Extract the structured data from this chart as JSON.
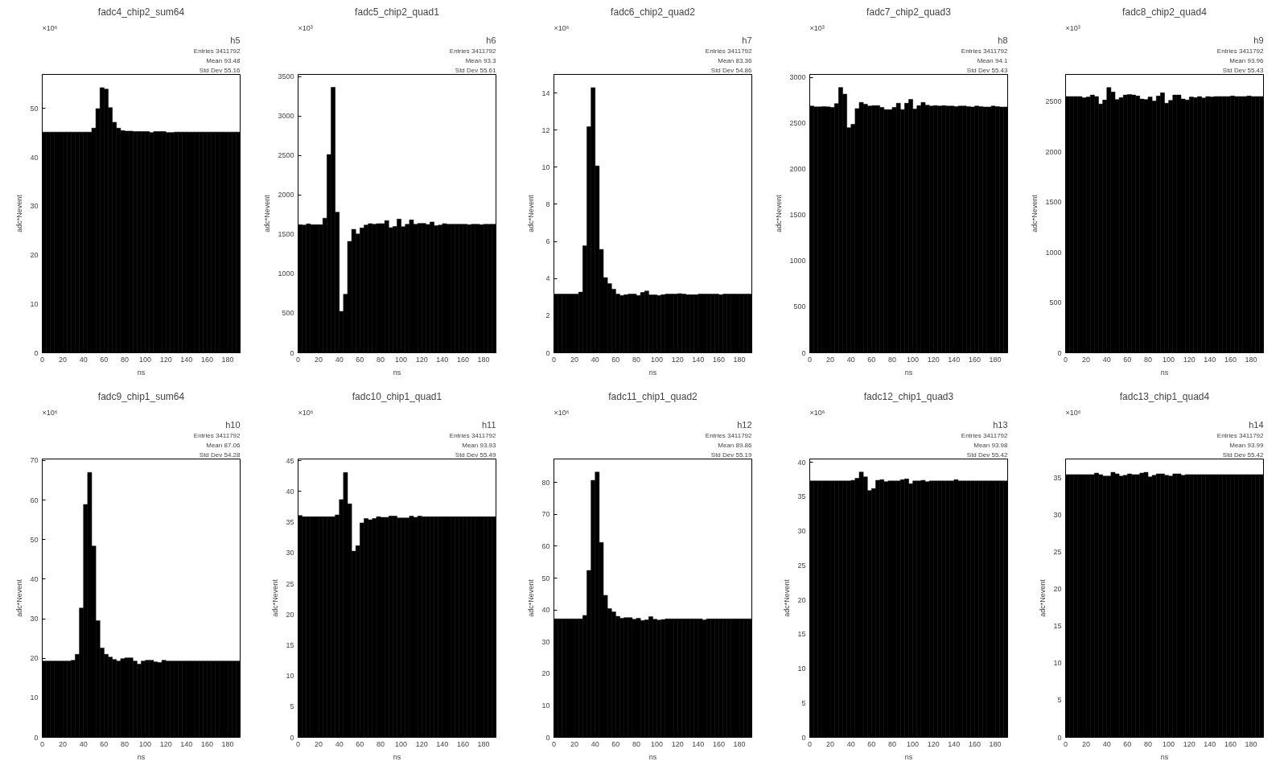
{
  "chart_data": [
    {
      "type": "histogram",
      "title": "fadc4_chip2_sum64",
      "xlabel": "ns",
      "ylabel": "adc*Nevent",
      "color": "#000000",
      "bins": [
        0,
        4,
        8,
        12,
        16,
        20,
        24,
        28,
        32,
        36,
        40,
        44,
        48,
        52,
        56,
        60,
        64,
        68,
        72,
        76,
        80,
        84,
        88,
        92,
        96,
        100,
        104,
        108,
        112,
        116,
        120,
        124,
        128,
        132,
        136,
        140,
        144,
        148,
        152,
        156,
        160,
        164,
        168,
        172,
        176,
        180,
        184,
        188,
        192
      ],
      "values": [
        45.2,
        45.2,
        45.2,
        45.2,
        45.2,
        45.2,
        45.2,
        45.2,
        45.2,
        45.2,
        45.2,
        45.2,
        46.0,
        50.0,
        54.3,
        54.0,
        50.2,
        47.2,
        46.0,
        45.5,
        45.4,
        45.4,
        45.3,
        45.3,
        45.3,
        45.3,
        45.1,
        45.3,
        45.3,
        45.3,
        45.1,
        45.1,
        45.2,
        45.2,
        45.2,
        45.2,
        45.2,
        45.2,
        45.2,
        45.2,
        45.2,
        45.2,
        45.2,
        45.2,
        45.2,
        45.2,
        45.2,
        45.2
      ],
      "xlim": [
        0,
        192
      ],
      "ylim": [
        0,
        57
      ],
      "xticks": [
        0,
        20,
        40,
        60,
        80,
        100,
        120,
        140,
        160,
        180
      ],
      "yticks": [
        0,
        10,
        20,
        30,
        40,
        50
      ],
      "annotations": [
        "×10⁶",
        "h5",
        "Entries 3411792",
        "Mean 93.48",
        "Std Dev 55.16"
      ]
    },
    {
      "type": "histogram",
      "title": "fadc5_chip2_quad1",
      "xlabel": "ns",
      "ylabel": "adc*Nevent",
      "color": "#000000",
      "bins": [
        0,
        4,
        8,
        12,
        16,
        20,
        24,
        28,
        32,
        36,
        40,
        44,
        48,
        52,
        56,
        60,
        64,
        68,
        72,
        76,
        80,
        84,
        88,
        92,
        96,
        100,
        104,
        108,
        112,
        116,
        120,
        124,
        128,
        132,
        136,
        140,
        144,
        148,
        152,
        156,
        160,
        164,
        168,
        172,
        176,
        180,
        184,
        188,
        192
      ],
      "values": [
        1625,
        1620,
        1635,
        1625,
        1625,
        1625,
        1707,
        2514,
        3366,
        1783,
        525,
        743,
        1413,
        1565,
        1507,
        1583,
        1620,
        1638,
        1630,
        1638,
        1638,
        1677,
        1587,
        1601,
        1695,
        1598,
        1630,
        1685,
        1630,
        1641,
        1641,
        1627,
        1659,
        1612,
        1620,
        1638,
        1630,
        1630,
        1630,
        1630,
        1630,
        1625,
        1630,
        1630,
        1625,
        1630,
        1630,
        1630
      ],
      "xlim": [
        0,
        192
      ],
      "ylim": [
        0,
        3530
      ],
      "xticks": [
        0,
        20,
        40,
        60,
        80,
        100,
        120,
        140,
        160,
        180
      ],
      "yticks": [
        0,
        500,
        1000,
        1500,
        2000,
        2500,
        3000,
        3500
      ],
      "annotations": [
        "×10³",
        "h6",
        "Entries 3411792",
        "Mean 93.3",
        "Std Dev 55.61"
      ]
    },
    {
      "type": "histogram",
      "title": "fadc6_chip2_quad2",
      "xlabel": "ns",
      "ylabel": "adc*Nevent",
      "color": "#000000",
      "bins": [
        0,
        4,
        8,
        12,
        16,
        20,
        24,
        28,
        32,
        36,
        40,
        44,
        48,
        52,
        56,
        60,
        64,
        68,
        72,
        76,
        80,
        84,
        88,
        92,
        96,
        100,
        104,
        108,
        112,
        116,
        120,
        124,
        128,
        132,
        136,
        140,
        144,
        148,
        152,
        156,
        160,
        164,
        168,
        172,
        176,
        180,
        184,
        188,
        192
      ],
      "values": [
        3.16,
        3.16,
        3.16,
        3.16,
        3.16,
        3.16,
        3.27,
        5.77,
        12.18,
        14.29,
        10.07,
        5.57,
        4.05,
        3.73,
        3.43,
        3.16,
        3.09,
        3.13,
        3.16,
        3.16,
        3.09,
        3.25,
        3.33,
        3.12,
        3.12,
        3.09,
        3.13,
        3.16,
        3.16,
        3.16,
        3.19,
        3.16,
        3.13,
        3.13,
        3.13,
        3.16,
        3.16,
        3.16,
        3.16,
        3.16,
        3.13,
        3.16,
        3.16,
        3.16,
        3.16,
        3.16,
        3.16,
        3.16
      ],
      "xlim": [
        0,
        192
      ],
      "ylim": [
        0,
        15
      ],
      "xticks": [
        0,
        20,
        40,
        60,
        80,
        100,
        120,
        140,
        160,
        180
      ],
      "yticks": [
        0,
        2,
        4,
        6,
        8,
        10,
        12,
        14
      ],
      "annotations": [
        "×10⁶",
        "h7",
        "Entries 3411792",
        "Mean 83.36",
        "Std Dev 54.86"
      ]
    },
    {
      "type": "histogram",
      "title": "fadc7_chip2_quad3",
      "xlabel": "ns",
      "ylabel": "adc*Nevent",
      "color": "#000000",
      "bins": [
        0,
        4,
        8,
        12,
        16,
        20,
        24,
        28,
        32,
        36,
        40,
        44,
        48,
        52,
        56,
        60,
        64,
        68,
        72,
        76,
        80,
        84,
        88,
        92,
        96,
        100,
        104,
        108,
        112,
        116,
        120,
        124,
        128,
        132,
        136,
        140,
        144,
        148,
        152,
        156,
        160,
        164,
        168,
        172,
        176,
        180,
        184,
        188,
        192
      ],
      "values": [
        2690,
        2681,
        2681,
        2685,
        2681,
        2675,
        2716,
        2893,
        2820,
        2454,
        2492,
        2663,
        2730,
        2710,
        2690,
        2695,
        2695,
        2675,
        2652,
        2652,
        2675,
        2721,
        2652,
        2721,
        2762,
        2658,
        2695,
        2730,
        2700,
        2690,
        2695,
        2690,
        2695,
        2690,
        2690,
        2685,
        2690,
        2690,
        2685,
        2680,
        2690,
        2685,
        2680,
        2680,
        2690,
        2685,
        2680,
        2680
      ],
      "xlim": [
        0,
        192
      ],
      "ylim": [
        0,
        3035
      ],
      "xticks": [
        0,
        20,
        40,
        60,
        80,
        100,
        120,
        140,
        160,
        180
      ],
      "yticks": [
        0,
        500,
        1000,
        1500,
        2000,
        2500,
        3000
      ],
      "annotations": [
        "×10³",
        "h8",
        "Entries 3411792",
        "Mean 94.1",
        "Std Dev 55.43"
      ]
    },
    {
      "type": "histogram",
      "title": "fadc8_chip2_quad4",
      "xlabel": "ns",
      "ylabel": "adc*Nevent",
      "color": "#000000",
      "bins": [
        0,
        4,
        8,
        12,
        16,
        20,
        24,
        28,
        32,
        36,
        40,
        44,
        48,
        52,
        56,
        60,
        64,
        68,
        72,
        76,
        80,
        84,
        88,
        92,
        96,
        100,
        104,
        108,
        112,
        116,
        120,
        124,
        128,
        132,
        136,
        140,
        144,
        148,
        152,
        156,
        160,
        164,
        168,
        172,
        176,
        180,
        184,
        188,
        192
      ],
      "values": [
        2550,
        2550,
        2550,
        2550,
        2538,
        2545,
        2565,
        2550,
        2475,
        2515,
        2640,
        2595,
        2520,
        2540,
        2565,
        2570,
        2565,
        2555,
        2525,
        2520,
        2545,
        2505,
        2555,
        2587,
        2483,
        2512,
        2565,
        2565,
        2525,
        2515,
        2545,
        2540,
        2550,
        2535,
        2550,
        2545,
        2550,
        2550,
        2550,
        2550,
        2555,
        2550,
        2550,
        2550,
        2555,
        2550,
        2550,
        2550
      ],
      "xlim": [
        0,
        192
      ],
      "ylim": [
        0,
        2770
      ],
      "xticks": [
        0,
        20,
        40,
        60,
        80,
        100,
        120,
        140,
        160,
        180
      ],
      "yticks": [
        0,
        500,
        1000,
        1500,
        2000,
        2500
      ],
      "annotations": [
        "×10³",
        "h9",
        "Entries 3411792",
        "Mean 93.96",
        "Std Dev 55.43"
      ]
    },
    {
      "type": "histogram",
      "title": "fadc9_chip1_sum64",
      "xlabel": "ns",
      "ylabel": "adc*Nevent",
      "color": "#000000",
      "bins": [
        0,
        4,
        8,
        12,
        16,
        20,
        24,
        28,
        32,
        36,
        40,
        44,
        48,
        52,
        56,
        60,
        64,
        68,
        72,
        76,
        80,
        84,
        88,
        92,
        96,
        100,
        104,
        108,
        112,
        116,
        120,
        124,
        128,
        132,
        136,
        140,
        144,
        148,
        152,
        156,
        160,
        164,
        168,
        172,
        176,
        180,
        184,
        188,
        192
      ],
      "values": [
        19.3,
        19.3,
        19.3,
        19.3,
        19.3,
        19.3,
        19.3,
        19.5,
        21.0,
        32.7,
        58.9,
        67.0,
        48.4,
        29.5,
        22.6,
        21.0,
        20.3,
        19.7,
        19.3,
        19.9,
        20.1,
        20.1,
        19.3,
        18.5,
        19.3,
        19.5,
        19.5,
        19.1,
        18.9,
        19.5,
        19.3,
        19.3,
        19.3,
        19.3,
        19.3,
        19.3,
        19.3,
        19.3,
        19.3,
        19.3,
        19.3,
        19.3,
        19.3,
        19.3,
        19.3,
        19.3,
        19.3,
        19.3
      ],
      "xlim": [
        0,
        192
      ],
      "ylim": [
        0,
        70.4
      ],
      "xticks": [
        0,
        20,
        40,
        60,
        80,
        100,
        120,
        140,
        160,
        180
      ],
      "yticks": [
        0,
        10,
        20,
        30,
        40,
        50,
        60,
        70
      ],
      "annotations": [
        "×10⁶",
        "h10",
        "Entries 3411792",
        "Mean 87.06",
        "Std Dev 54.28"
      ]
    },
    {
      "type": "histogram",
      "title": "fadc10_chip1_quad1",
      "xlabel": "ns",
      "ylabel": "adc*Nevent",
      "color": "#000000",
      "bins": [
        0,
        4,
        8,
        12,
        16,
        20,
        24,
        28,
        32,
        36,
        40,
        44,
        48,
        52,
        56,
        60,
        64,
        68,
        72,
        76,
        80,
        84,
        88,
        92,
        96,
        100,
        104,
        108,
        112,
        116,
        120,
        124,
        128,
        132,
        136,
        140,
        144,
        148,
        152,
        156,
        160,
        164,
        168,
        172,
        176,
        180,
        184,
        188,
        192
      ],
      "values": [
        36.1,
        35.9,
        35.9,
        35.9,
        35.9,
        35.9,
        35.9,
        35.9,
        35.9,
        36.2,
        38.7,
        43.1,
        38.0,
        30.3,
        31.2,
        34.9,
        35.6,
        35.4,
        35.6,
        35.9,
        35.8,
        35.8,
        36.0,
        36.0,
        35.7,
        35.7,
        35.7,
        36.0,
        35.8,
        36.0,
        35.9,
        35.9,
        35.9,
        35.9,
        35.9,
        35.9,
        35.9,
        35.9,
        35.9,
        35.9,
        35.9,
        35.9,
        35.9,
        35.9,
        35.9,
        35.9,
        35.9,
        35.9
      ],
      "xlim": [
        0,
        192
      ],
      "ylim": [
        0,
        45.3
      ],
      "xticks": [
        0,
        20,
        40,
        60,
        80,
        100,
        120,
        140,
        160,
        180
      ],
      "yticks": [
        0,
        5,
        10,
        15,
        20,
        25,
        30,
        35,
        40,
        45
      ],
      "annotations": [
        "×10⁶",
        "h11",
        "Entries 3411792",
        "Mean 93.93",
        "Std Dev 55.49"
      ]
    },
    {
      "type": "histogram",
      "title": "fadc11_chip1_quad2",
      "xlabel": "ns",
      "ylabel": "adc*Nevent",
      "color": "#000000",
      "bins": [
        0,
        4,
        8,
        12,
        16,
        20,
        24,
        28,
        32,
        36,
        40,
        44,
        48,
        52,
        56,
        60,
        64,
        68,
        72,
        76,
        80,
        84,
        88,
        92,
        96,
        100,
        104,
        108,
        112,
        116,
        120,
        124,
        128,
        132,
        136,
        140,
        144,
        148,
        152,
        156,
        160,
        164,
        168,
        172,
        176,
        180,
        184,
        188,
        192
      ],
      "values": [
        37.2,
        37.2,
        37.2,
        37.2,
        37.2,
        37.2,
        37.2,
        38.3,
        52.4,
        80.7,
        83.3,
        61.2,
        44.6,
        40.4,
        39.4,
        38.0,
        37.4,
        37.6,
        37.6,
        37.1,
        37.4,
        36.7,
        36.9,
        37.9,
        37.1,
        36.8,
        37.0,
        37.2,
        37.2,
        37.2,
        37.2,
        37.2,
        37.2,
        37.2,
        37.2,
        37.2,
        36.9,
        37.2,
        37.2,
        37.2,
        37.2,
        37.2,
        37.2,
        37.2,
        37.2,
        37.2,
        37.2,
        37.2
      ],
      "xlim": [
        0,
        192
      ],
      "ylim": [
        0,
        87.4
      ],
      "xticks": [
        0,
        20,
        40,
        60,
        80,
        100,
        120,
        140,
        160,
        180
      ],
      "yticks": [
        0,
        10,
        20,
        30,
        40,
        50,
        60,
        70,
        80
      ],
      "annotations": [
        "×10⁶",
        "h12",
        "Entries 3411792",
        "Mean 89.86",
        "Std Dev 55.19"
      ]
    },
    {
      "type": "histogram",
      "title": "fadc12_chip1_quad3",
      "xlabel": "ns",
      "ylabel": "adc*Nevent",
      "color": "#000000",
      "bins": [
        0,
        4,
        8,
        12,
        16,
        20,
        24,
        28,
        32,
        36,
        40,
        44,
        48,
        52,
        56,
        60,
        64,
        68,
        72,
        76,
        80,
        84,
        88,
        92,
        96,
        100,
        104,
        108,
        112,
        116,
        120,
        124,
        128,
        132,
        136,
        140,
        144,
        148,
        152,
        156,
        160,
        164,
        168,
        172,
        176,
        180,
        184,
        188,
        192
      ],
      "values": [
        37.3,
        37.3,
        37.3,
        37.3,
        37.3,
        37.3,
        37.3,
        37.3,
        37.3,
        37.3,
        37.4,
        37.7,
        38.6,
        37.9,
        35.9,
        36.2,
        37.4,
        37.5,
        37.2,
        37.3,
        37.3,
        37.3,
        37.5,
        37.6,
        36.9,
        37.3,
        37.3,
        37.4,
        37.2,
        37.3,
        37.3,
        37.3,
        37.3,
        37.3,
        37.3,
        37.5,
        37.3,
        37.3,
        37.3,
        37.3,
        37.3,
        37.3,
        37.3,
        37.3,
        37.3,
        37.3,
        37.3,
        37.3
      ],
      "xlim": [
        0,
        192
      ],
      "ylim": [
        0,
        40.5
      ],
      "xticks": [
        0,
        20,
        40,
        60,
        80,
        100,
        120,
        140,
        160,
        180
      ],
      "yticks": [
        0,
        5,
        10,
        15,
        20,
        25,
        30,
        35,
        40
      ],
      "annotations": [
        "×10⁶",
        "h13",
        "Entries 3411792",
        "Mean 93.98",
        "Std Dev 55.42"
      ]
    },
    {
      "type": "histogram",
      "title": "fadc13_chip1_quad4",
      "xlabel": "ns",
      "ylabel": "adc*Nevent",
      "color": "#000000",
      "bins": [
        0,
        4,
        8,
        12,
        16,
        20,
        24,
        28,
        32,
        36,
        40,
        44,
        48,
        52,
        56,
        60,
        64,
        68,
        72,
        76,
        80,
        84,
        88,
        92,
        96,
        100,
        104,
        108,
        112,
        116,
        120,
        124,
        128,
        132,
        136,
        140,
        144,
        148,
        152,
        156,
        160,
        164,
        168,
        172,
        176,
        180,
        184,
        188,
        192
      ],
      "values": [
        35.4,
        35.4,
        35.4,
        35.4,
        35.4,
        35.4,
        35.4,
        35.6,
        35.4,
        35.2,
        35.2,
        35.7,
        35.5,
        35.2,
        35.3,
        35.5,
        35.4,
        35.4,
        35.6,
        35.7,
        35.1,
        35.3,
        35.5,
        35.5,
        35.3,
        35.2,
        35.5,
        35.5,
        35.3,
        35.4,
        35.4,
        35.4,
        35.4,
        35.4,
        35.4,
        35.4,
        35.4,
        35.4,
        35.4,
        35.4,
        35.4,
        35.4,
        35.4,
        35.4,
        35.4,
        35.4,
        35.4,
        35.4
      ],
      "xlim": [
        0,
        192
      ],
      "ylim": [
        0,
        37.5
      ],
      "xticks": [
        0,
        20,
        40,
        60,
        80,
        100,
        120,
        140,
        160,
        180
      ],
      "yticks": [
        0,
        5,
        10,
        15,
        20,
        25,
        30,
        35
      ],
      "annotations": [
        "×10⁶",
        "h14",
        "Entries 3411792",
        "Mean 93.99",
        "Std Dev 55.42"
      ]
    }
  ]
}
